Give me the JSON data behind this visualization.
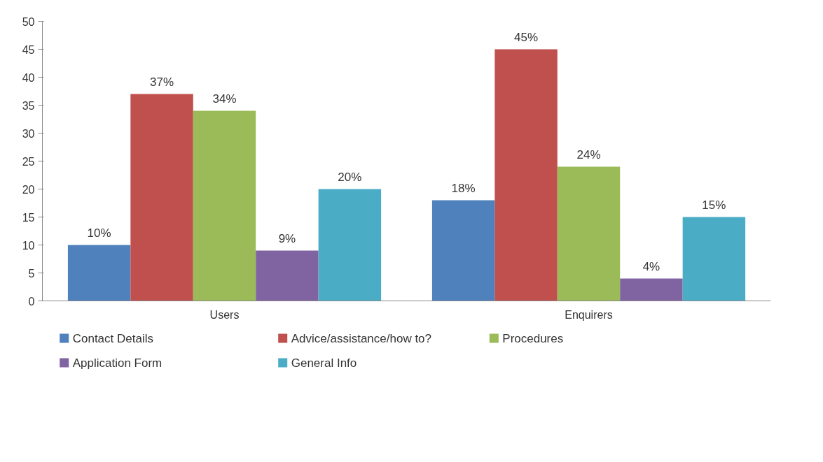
{
  "chart_data": {
    "type": "bar",
    "categories": [
      "Users",
      "Enquirers"
    ],
    "series": [
      {
        "name": "Contact Details",
        "color": "#4f81bd",
        "values": [
          10,
          18
        ],
        "value_labels": [
          "10%",
          "18%"
        ]
      },
      {
        "name": "Advice/assistance/how to?",
        "color": "#c0504d",
        "values": [
          37,
          45
        ],
        "value_labels": [
          "37%",
          "45%"
        ]
      },
      {
        "name": "Procedures",
        "color": "#9bbb59",
        "values": [
          34,
          24
        ],
        "value_labels": [
          "34%",
          "24%"
        ]
      },
      {
        "name": "Application Form",
        "color": "#8064a2",
        "values": [
          9,
          4
        ],
        "value_labels": [
          "9%",
          "4%"
        ]
      },
      {
        "name": "General Info",
        "color": "#4bacc6",
        "values": [
          20,
          15
        ],
        "value_labels": [
          "20%",
          "15%"
        ]
      }
    ],
    "ylim": [
      0,
      50
    ],
    "yticks": [
      0,
      5,
      10,
      15,
      20,
      25,
      30,
      35,
      40,
      45,
      50
    ],
    "grid": false,
    "legend": "bottom"
  }
}
